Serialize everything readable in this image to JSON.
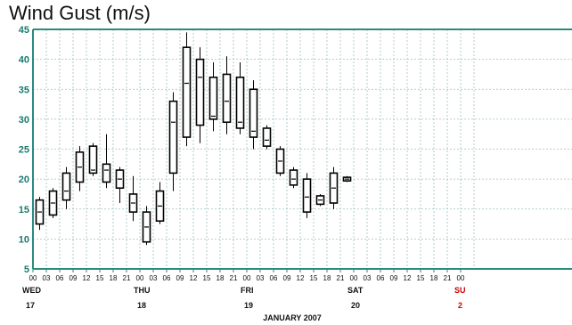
{
  "chart_data": {
    "type": "box",
    "title": "Wind Gust (m/s)",
    "ylim": [
      5,
      45
    ],
    "yticks": [
      5,
      10,
      15,
      20,
      25,
      30,
      35,
      40,
      45
    ],
    "grid": true,
    "colors": {
      "frame": "#2a8a7e",
      "grid": "#9fbfbf",
      "box": "#000000",
      "weekend": "#cc0000"
    },
    "x_hour_labels": [
      "00",
      "03",
      "06",
      "09",
      "12",
      "15",
      "18",
      "21",
      "00",
      "03",
      "06",
      "09",
      "12",
      "15",
      "18",
      "21",
      "00",
      "03",
      "06",
      "09",
      "12",
      "15",
      "18",
      "21",
      "00",
      "03",
      "06",
      "09",
      "12",
      "15",
      "18",
      "21",
      "00"
    ],
    "days": [
      {
        "index": 0,
        "name": "WED",
        "date": "17",
        "weekend": false
      },
      {
        "index": 8,
        "name": "THU",
        "date": "18",
        "weekend": false
      },
      {
        "index": 16,
        "name": "FRI",
        "date": "19",
        "weekend": false
      },
      {
        "index": 24,
        "name": "SAT",
        "date": "20",
        "weekend": false
      },
      {
        "index": 32,
        "name": "SU",
        "date": "2",
        "weekend": true
      }
    ],
    "xlabel": "JANUARY 2007",
    "series": [
      {
        "x": 0.5,
        "low": 11.5,
        "q1": 12.5,
        "median": 14.5,
        "q3": 16.5,
        "high": 17.0
      },
      {
        "x": 1.5,
        "low": 13.5,
        "q1": 14.0,
        "median": 16.0,
        "q3": 18.0,
        "high": 18.5
      },
      {
        "x": 2.5,
        "low": 15.0,
        "q1": 16.5,
        "median": 18.0,
        "q3": 21.0,
        "high": 22.0
      },
      {
        "x": 3.5,
        "low": 18.0,
        "q1": 19.5,
        "median": 22.0,
        "q3": 24.5,
        "high": 25.5
      },
      {
        "x": 4.5,
        "low": 20.5,
        "q1": 21.0,
        "median": 21.5,
        "q3": 25.5,
        "high": 26.0
      },
      {
        "x": 5.5,
        "low": 18.5,
        "q1": 19.5,
        "median": 21.5,
        "q3": 22.5,
        "high": 27.5
      },
      {
        "x": 6.5,
        "low": 16.0,
        "q1": 18.5,
        "median": 20.0,
        "q3": 21.5,
        "high": 22.0
      },
      {
        "x": 7.5,
        "low": 13.0,
        "q1": 14.5,
        "median": 16.0,
        "q3": 17.5,
        "high": 20.5
      },
      {
        "x": 8.5,
        "low": 9.0,
        "q1": 9.5,
        "median": 12.0,
        "q3": 14.5,
        "high": 15.5
      },
      {
        "x": 9.5,
        "low": 12.5,
        "q1": 13.0,
        "median": 15.5,
        "q3": 18.0,
        "high": 19.5
      },
      {
        "x": 10.5,
        "low": 18.0,
        "q1": 21.0,
        "median": 29.5,
        "q3": 33.0,
        "high": 34.5
      },
      {
        "x": 11.5,
        "low": 25.5,
        "q1": 27.0,
        "median": 36.0,
        "q3": 42.0,
        "high": 44.5
      },
      {
        "x": 12.5,
        "low": 26.0,
        "q1": 29.0,
        "median": 37.0,
        "q3": 40.0,
        "high": 42.0
      },
      {
        "x": 13.5,
        "low": 28.0,
        "q1": 30.0,
        "median": 30.5,
        "q3": 37.0,
        "high": 39.5
      },
      {
        "x": 14.5,
        "low": 27.5,
        "q1": 29.5,
        "median": 33.0,
        "q3": 37.5,
        "high": 40.5
      },
      {
        "x": 15.5,
        "low": 27.5,
        "q1": 28.5,
        "median": 29.5,
        "q3": 37.0,
        "high": 39.5
      },
      {
        "x": 16.5,
        "low": 25.0,
        "q1": 27.0,
        "median": 28.0,
        "q3": 35.0,
        "high": 36.5
      },
      {
        "x": 17.5,
        "low": 25.0,
        "q1": 25.5,
        "median": 26.5,
        "q3": 28.5,
        "high": 29.0
      },
      {
        "x": 18.5,
        "low": 20.5,
        "q1": 21.0,
        "median": 23.0,
        "q3": 25.0,
        "high": 25.5
      },
      {
        "x": 19.5,
        "low": 18.5,
        "q1": 19.0,
        "median": 20.0,
        "q3": 21.5,
        "high": 22.0
      },
      {
        "x": 20.5,
        "low": 13.5,
        "q1": 14.5,
        "median": 17.0,
        "q3": 20.0,
        "high": 21.0
      },
      {
        "x": 21.5,
        "low": 15.5,
        "q1": 15.8,
        "median": 16.5,
        "q3": 17.2,
        "high": 17.5
      },
      {
        "x": 22.5,
        "low": 15.0,
        "q1": 16.0,
        "median": 18.5,
        "q3": 21.0,
        "high": 22.0
      },
      {
        "x": 23.5,
        "low": 19.5,
        "q1": 19.7,
        "median": 20.0,
        "q3": 20.3,
        "high": 20.5
      }
    ]
  }
}
